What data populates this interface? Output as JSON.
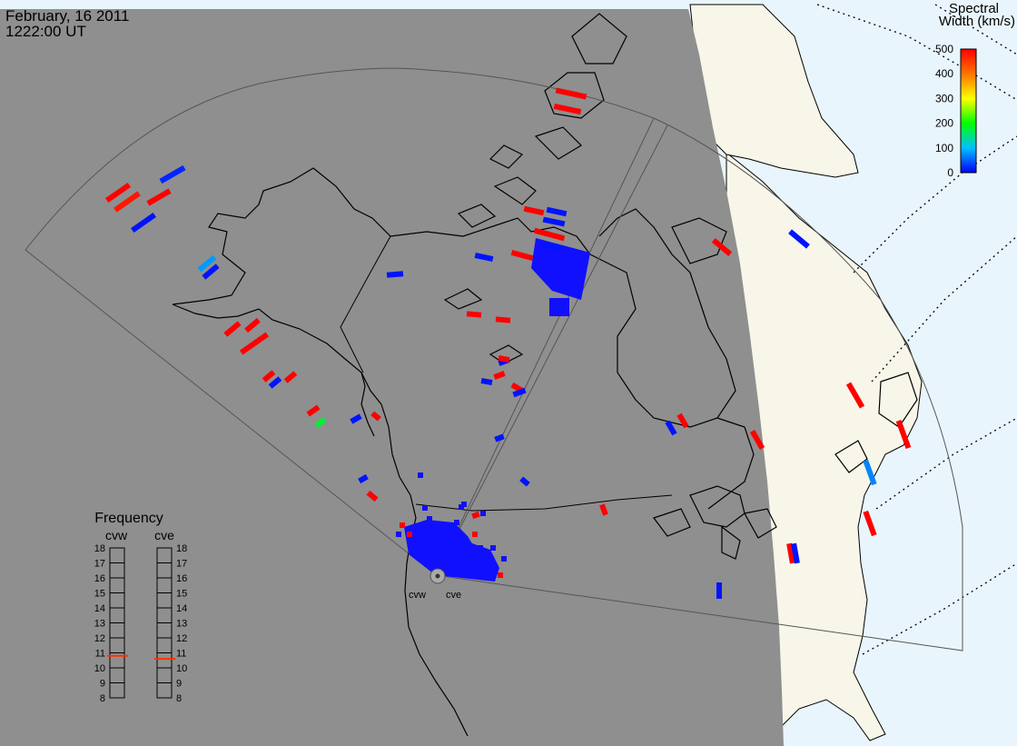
{
  "header": {
    "date": "February, 16 2011",
    "time": "1222:00 UT"
  },
  "colors": {
    "night": "#8f8f8f",
    "day_land": "#f7f6e9",
    "day_sea": "#e9f5fd",
    "coast": "#000000",
    "fov": "#555555"
  },
  "colorbar": {
    "title_line1": "Spectral",
    "title_line2": "Width (km/s)",
    "ticks": [
      "500",
      "400",
      "300",
      "200",
      "100",
      "0"
    ]
  },
  "frequency": {
    "title": "Frequency",
    "radars": [
      "cvw",
      "cve"
    ],
    "ticks": [
      "18",
      "17",
      "16",
      "15",
      "14",
      "13",
      "12",
      "11",
      "10",
      "9",
      "8"
    ],
    "values_mhz": [
      10.8,
      10.6
    ]
  },
  "radar_site": {
    "labels": [
      "cvw",
      "cve"
    ]
  },
  "echoes": [
    {
      "w": 500,
      "n": "far-nw"
    },
    {
      "w": 480,
      "n": "far-nw"
    },
    {
      "w": 20,
      "n": "far-nw"
    },
    {
      "w": 500,
      "n": "far-nw"
    },
    {
      "w": 10,
      "n": "far-nw"
    },
    {
      "w": 80,
      "n": "alaska"
    },
    {
      "w": 10,
      "n": "alaska"
    },
    {
      "w": 500,
      "n": "alaska"
    },
    {
      "w": 500,
      "n": "alaska"
    },
    {
      "w": 500,
      "n": "alaska"
    },
    {
      "w": 500,
      "n": "coast"
    },
    {
      "w": 10,
      "n": "coast"
    },
    {
      "w": 500,
      "n": "coast"
    },
    {
      "w": 500,
      "n": "coast"
    },
    {
      "w": 180,
      "n": "coast"
    },
    {
      "w": 10,
      "n": "coast"
    },
    {
      "w": 500,
      "n": "coast"
    },
    {
      "w": 10,
      "n": "coast"
    },
    {
      "w": 500,
      "n": "coast"
    },
    {
      "w": 500,
      "n": "arctic"
    },
    {
      "w": 500,
      "n": "arctic"
    },
    {
      "w": 500,
      "n": "arctic"
    },
    {
      "w": 10,
      "n": "arctic"
    },
    {
      "w": 10,
      "n": "arctic"
    },
    {
      "w": 500,
      "n": "arctic"
    },
    {
      "w": 500,
      "n": "arctic"
    },
    {
      "w": 10,
      "n": "arctic"
    },
    {
      "w": 10,
      "n": "arctic"
    },
    {
      "w": 10,
      "n": "beam"
    },
    {
      "w": 500,
      "n": "beam"
    },
    {
      "w": 500,
      "n": "beam"
    },
    {
      "w": 10,
      "n": "beam"
    },
    {
      "w": 10,
      "n": "beam"
    },
    {
      "w": 500,
      "n": "beam"
    },
    {
      "w": 10,
      "n": "beam"
    },
    {
      "w": 10,
      "n": "interior"
    },
    {
      "w": 500,
      "n": "interior"
    },
    {
      "w": 500,
      "n": "interior"
    },
    {
      "w": 10,
      "n": "interior"
    },
    {
      "w": 500,
      "n": "interior"
    },
    {
      "w": 500,
      "n": "hudson"
    },
    {
      "w": 10,
      "n": "hudson"
    },
    {
      "w": 500,
      "n": "hudson"
    },
    {
      "w": 500,
      "n": "hudson"
    },
    {
      "w": 500,
      "n": "atlantic"
    },
    {
      "w": 10,
      "n": "atlantic"
    },
    {
      "w": 500,
      "n": "atlantic"
    },
    {
      "w": 500,
      "n": "atlantic"
    },
    {
      "w": 70,
      "n": "atlantic"
    },
    {
      "w": 500,
      "n": "atlantic"
    },
    {
      "w": 500,
      "n": "atlantic"
    },
    {
      "w": 10,
      "n": "atlantic"
    },
    {
      "w": 10,
      "n": "atlantic"
    }
  ]
}
